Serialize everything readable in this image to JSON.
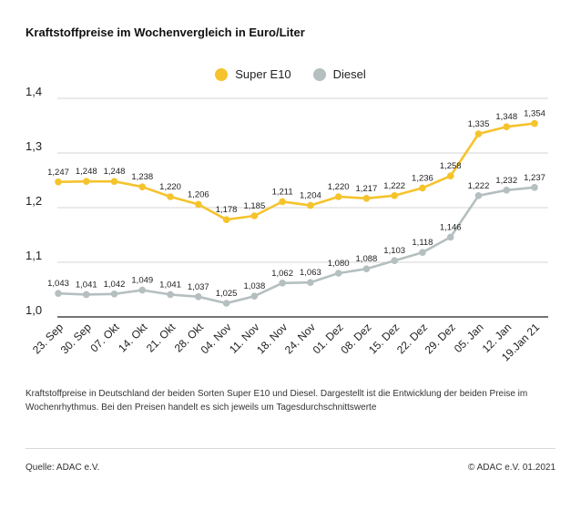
{
  "title": "Kraftstoffpreise im Wochenvergleich in Euro/Liter",
  "caption": "Kraftstoffpreise in Deutschland der beiden Sorten Super E10 und Diesel. Dargestellt ist die Entwicklung der beiden Preise im Wochenrhythmus. Bei den Preisen handelt es sich jeweils um Tagesdurchschnittswerte",
  "source": "Quelle: ADAC e.V.",
  "copyright": "© ADAC e.V. 01.2021",
  "colors": {
    "super": "#f5c32c",
    "diesel": "#b5bfbf",
    "grid": "#d4d4d4",
    "axis": "#222222"
  },
  "chart_data": {
    "type": "line",
    "title": "Kraftstoffpreise im Wochenvergleich in Euro/Liter",
    "categories": [
      "23. Sep",
      "30. Sep",
      "07. Okt",
      "14. Okt",
      "21. Okt",
      "28. Okt",
      "04. Nov",
      "11. Nov",
      "18. Nov",
      "24. Nov",
      "01. Dez",
      "08. Dez",
      "15. Dez",
      "22. Dez",
      "29. Dez",
      "05. Jan",
      "12. Jan",
      "19.Jan 21"
    ],
    "series": [
      {
        "name": "Super E10",
        "color": "#f5c32c",
        "values": [
          1.247,
          1.248,
          1.248,
          1.238,
          1.22,
          1.206,
          1.178,
          1.185,
          1.211,
          1.204,
          1.22,
          1.217,
          1.222,
          1.236,
          1.258,
          1.335,
          1.348,
          1.354
        ],
        "labels": [
          "1,247",
          "1,248",
          "1,248",
          "1,238",
          "1,220",
          "1,206",
          "1,178",
          "1,185",
          "1,211",
          "1,204",
          "1,220",
          "1,217",
          "1,222",
          "1,236",
          "1,258",
          "1,335",
          "1,348",
          "1,354"
        ]
      },
      {
        "name": "Diesel",
        "color": "#b5bfbf",
        "values": [
          1.043,
          1.041,
          1.042,
          1.049,
          1.041,
          1.037,
          1.025,
          1.038,
          1.062,
          1.063,
          1.08,
          1.088,
          1.103,
          1.118,
          1.146,
          1.222,
          1.232,
          1.237
        ],
        "labels": [
          "1,043",
          "1,041",
          "1,042",
          "1,049",
          "1,041",
          "1,037",
          "1,025",
          "1,038",
          "1,062",
          "1,063",
          "1,080",
          "1,088",
          "1,103",
          "1,118",
          "1,146",
          "1,222",
          "1,232",
          "1,237"
        ]
      }
    ],
    "yticks": [
      1.0,
      1.1,
      1.2,
      1.3,
      1.4
    ],
    "ytick_labels": [
      "1,0",
      "1,1",
      "1,2",
      "1,3",
      "1,4"
    ],
    "ylim": [
      1.0,
      1.4
    ],
    "grid": true,
    "legend": "top-center"
  }
}
